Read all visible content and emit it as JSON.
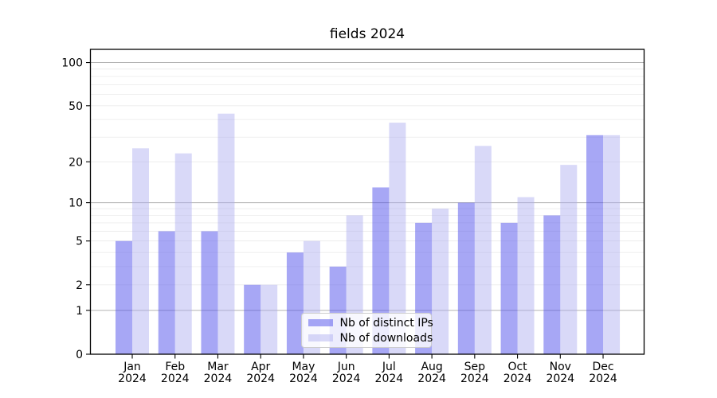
{
  "chart_data": {
    "type": "bar",
    "title": "fields 2024",
    "categories": [
      "Jan 2024",
      "Feb 2024",
      "Mar 2024",
      "Apr 2024",
      "May 2024",
      "Jun 2024",
      "Jul 2024",
      "Aug 2024",
      "Sep 2024",
      "Oct 2024",
      "Nov 2024",
      "Dec 2024"
    ],
    "series": [
      {
        "name": "Nb of distinct IPs",
        "color": "rgba(80,80,235,0.5)",
        "values": [
          5,
          6,
          6,
          2,
          4,
          3,
          13,
          7,
          10,
          7,
          8,
          31
        ]
      },
      {
        "name": "Nb of downloads",
        "color": "rgba(171,171,239,0.45)",
        "values": [
          25,
          23,
          44,
          2,
          5,
          8,
          38,
          9,
          26,
          11,
          19,
          31
        ]
      }
    ],
    "yscale": "log1p",
    "ylim": [
      0,
      124
    ],
    "ytick_labels": [
      0,
      1,
      2,
      5,
      10,
      20,
      50,
      100
    ],
    "grid": "horizontal",
    "legend_position": "lower-center",
    "colors": {
      "grid_major": "#b3b3b3",
      "grid_minor": "#ececec",
      "axis": "#000000",
      "background": "#ffffff"
    }
  }
}
